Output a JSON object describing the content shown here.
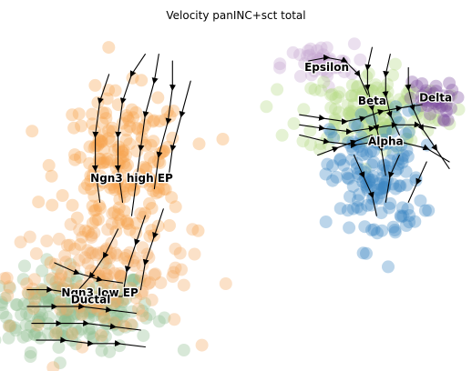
{
  "chart_data": {
    "type": "scatter",
    "title": "Velocity panINC+sct total",
    "xlabel": "",
    "ylabel": "",
    "axes": "off",
    "grid": false,
    "xlim": [
      0,
      100
    ],
    "ylim": [
      0,
      100
    ],
    "clusters": [
      {
        "label": "Ductal",
        "color": "#8fbc8f",
        "center": [
          14,
          16
        ],
        "spread": [
          9,
          6
        ],
        "n": 210
      },
      {
        "label": "Ngn3 low EP",
        "color": "#f4a861",
        "center": [
          20,
          26
        ],
        "spread": [
          10,
          8
        ],
        "n": 150
      },
      {
        "label": "Ngn3 high EP",
        "color": "#f6a24d",
        "center": [
          25,
          58
        ],
        "spread": [
          7,
          11
        ],
        "n": 200
      },
      {
        "label": "Epsilon",
        "color": "#c5a7d2",
        "center": [
          68,
          89
        ],
        "spread": [
          4,
          3
        ],
        "n": 40
      },
      {
        "label": "Beta",
        "color": "#b5db84",
        "center": [
          80,
          75
        ],
        "spread": [
          8,
          6
        ],
        "n": 160
      },
      {
        "label": "Delta",
        "color": "#7a4a9e",
        "center": [
          93,
          78
        ],
        "spread": [
          2.5,
          3
        ],
        "n": 35
      },
      {
        "label": "Alpha",
        "color": "#3b86c2",
        "center": [
          81,
          55
        ],
        "spread": [
          5,
          10
        ],
        "n": 150
      }
    ],
    "labels": [
      {
        "text": "Epsilon",
        "x": 70,
        "y": 87
      },
      {
        "text": "Beta",
        "x": 80,
        "y": 77
      },
      {
        "text": "Delta",
        "x": 94,
        "y": 78
      },
      {
        "text": "Alpha",
        "x": 83,
        "y": 65
      },
      {
        "text": "Ngn3 high EP",
        "x": 27,
        "y": 54
      },
      {
        "text": "Ngn3 low EP",
        "x": 20,
        "y": 20
      },
      {
        "text": "Ductal",
        "x": 18,
        "y": 18
      }
    ],
    "streamlines": [
      [
        [
          30,
          92
        ],
        [
          27,
          86
        ],
        [
          25,
          78
        ],
        [
          24,
          68
        ],
        [
          24,
          58
        ],
        [
          25,
          48
        ]
      ],
      [
        [
          33,
          92
        ],
        [
          32,
          84
        ],
        [
          30,
          74
        ],
        [
          29,
          64
        ],
        [
          28,
          54
        ],
        [
          27,
          44
        ]
      ],
      [
        [
          36,
          90
        ],
        [
          36,
          82
        ],
        [
          35,
          72
        ],
        [
          33,
          62
        ],
        [
          32,
          52
        ]
      ],
      [
        [
          22,
          86
        ],
        [
          20,
          78
        ],
        [
          19,
          68
        ],
        [
          19,
          58
        ],
        [
          20,
          48
        ]
      ],
      [
        [
          40,
          84
        ],
        [
          38,
          74
        ],
        [
          36,
          64
        ],
        [
          35,
          54
        ]
      ],
      [
        [
          34,
          46
        ],
        [
          32,
          38
        ],
        [
          30,
          30
        ],
        [
          29,
          22
        ]
      ],
      [
        [
          30,
          44
        ],
        [
          28,
          36
        ],
        [
          26,
          28
        ],
        [
          25,
          20
        ]
      ],
      [
        [
          24,
          40
        ],
        [
          21,
          32
        ],
        [
          18,
          26
        ],
        [
          14,
          20
        ]
      ],
      [
        [
          4,
          22
        ],
        [
          9,
          22
        ],
        [
          14,
          21
        ],
        [
          20,
          20
        ],
        [
          26,
          20
        ]
      ],
      [
        [
          4,
          17
        ],
        [
          10,
          17
        ],
        [
          16,
          17
        ],
        [
          22,
          16
        ],
        [
          28,
          15
        ]
      ],
      [
        [
          5,
          12
        ],
        [
          11,
          12
        ],
        [
          17,
          12
        ],
        [
          23,
          11
        ],
        [
          29,
          10
        ]
      ],
      [
        [
          6,
          7
        ],
        [
          12,
          7
        ],
        [
          18,
          6
        ],
        [
          24,
          6
        ],
        [
          30,
          5
        ]
      ],
      [
        [
          10,
          30
        ],
        [
          15,
          27
        ],
        [
          20,
          25
        ],
        [
          25,
          24
        ]
      ],
      [
        [
          64,
          74
        ],
        [
          69,
          73
        ],
        [
          74,
          72
        ],
        [
          78,
          73
        ],
        [
          82,
          75
        ],
        [
          86,
          76
        ],
        [
          91,
          77
        ]
      ],
      [
        [
          64,
          71
        ],
        [
          69,
          70
        ],
        [
          75,
          69
        ],
        [
          80,
          70
        ],
        [
          85,
          71
        ],
        [
          90,
          71
        ],
        [
          94,
          70
        ]
      ],
      [
        [
          64,
          68
        ],
        [
          70,
          66
        ],
        [
          76,
          65
        ],
        [
          81,
          66
        ],
        [
          86,
          66
        ],
        [
          92,
          64
        ],
        [
          97,
          60
        ]
      ],
      [
        [
          68,
          62
        ],
        [
          72,
          64
        ],
        [
          76,
          66
        ],
        [
          80,
          68
        ]
      ],
      [
        [
          80,
          94
        ],
        [
          79,
          88
        ],
        [
          79,
          82
        ],
        [
          80,
          76
        ],
        [
          81,
          70
        ],
        [
          82,
          64
        ],
        [
          83,
          56
        ]
      ],
      [
        [
          84,
          92
        ],
        [
          83,
          86
        ],
        [
          83,
          80
        ],
        [
          84,
          74
        ],
        [
          86,
          68
        ]
      ],
      [
        [
          88,
          88
        ],
        [
          88,
          82
        ],
        [
          89,
          76
        ],
        [
          91,
          70
        ],
        [
          94,
          64
        ],
        [
          97,
          58
        ]
      ],
      [
        [
          66,
          90
        ],
        [
          70,
          91
        ],
        [
          74,
          90
        ],
        [
          77,
          86
        ],
        [
          79,
          80
        ]
      ],
      [
        [
          76,
          62
        ],
        [
          78,
          56
        ],
        [
          80,
          50
        ],
        [
          81,
          44
        ]
      ],
      [
        [
          86,
          62
        ],
        [
          84,
          56
        ],
        [
          83,
          48
        ]
      ],
      [
        [
          92,
          60
        ],
        [
          90,
          54
        ],
        [
          88,
          48
        ]
      ]
    ]
  }
}
